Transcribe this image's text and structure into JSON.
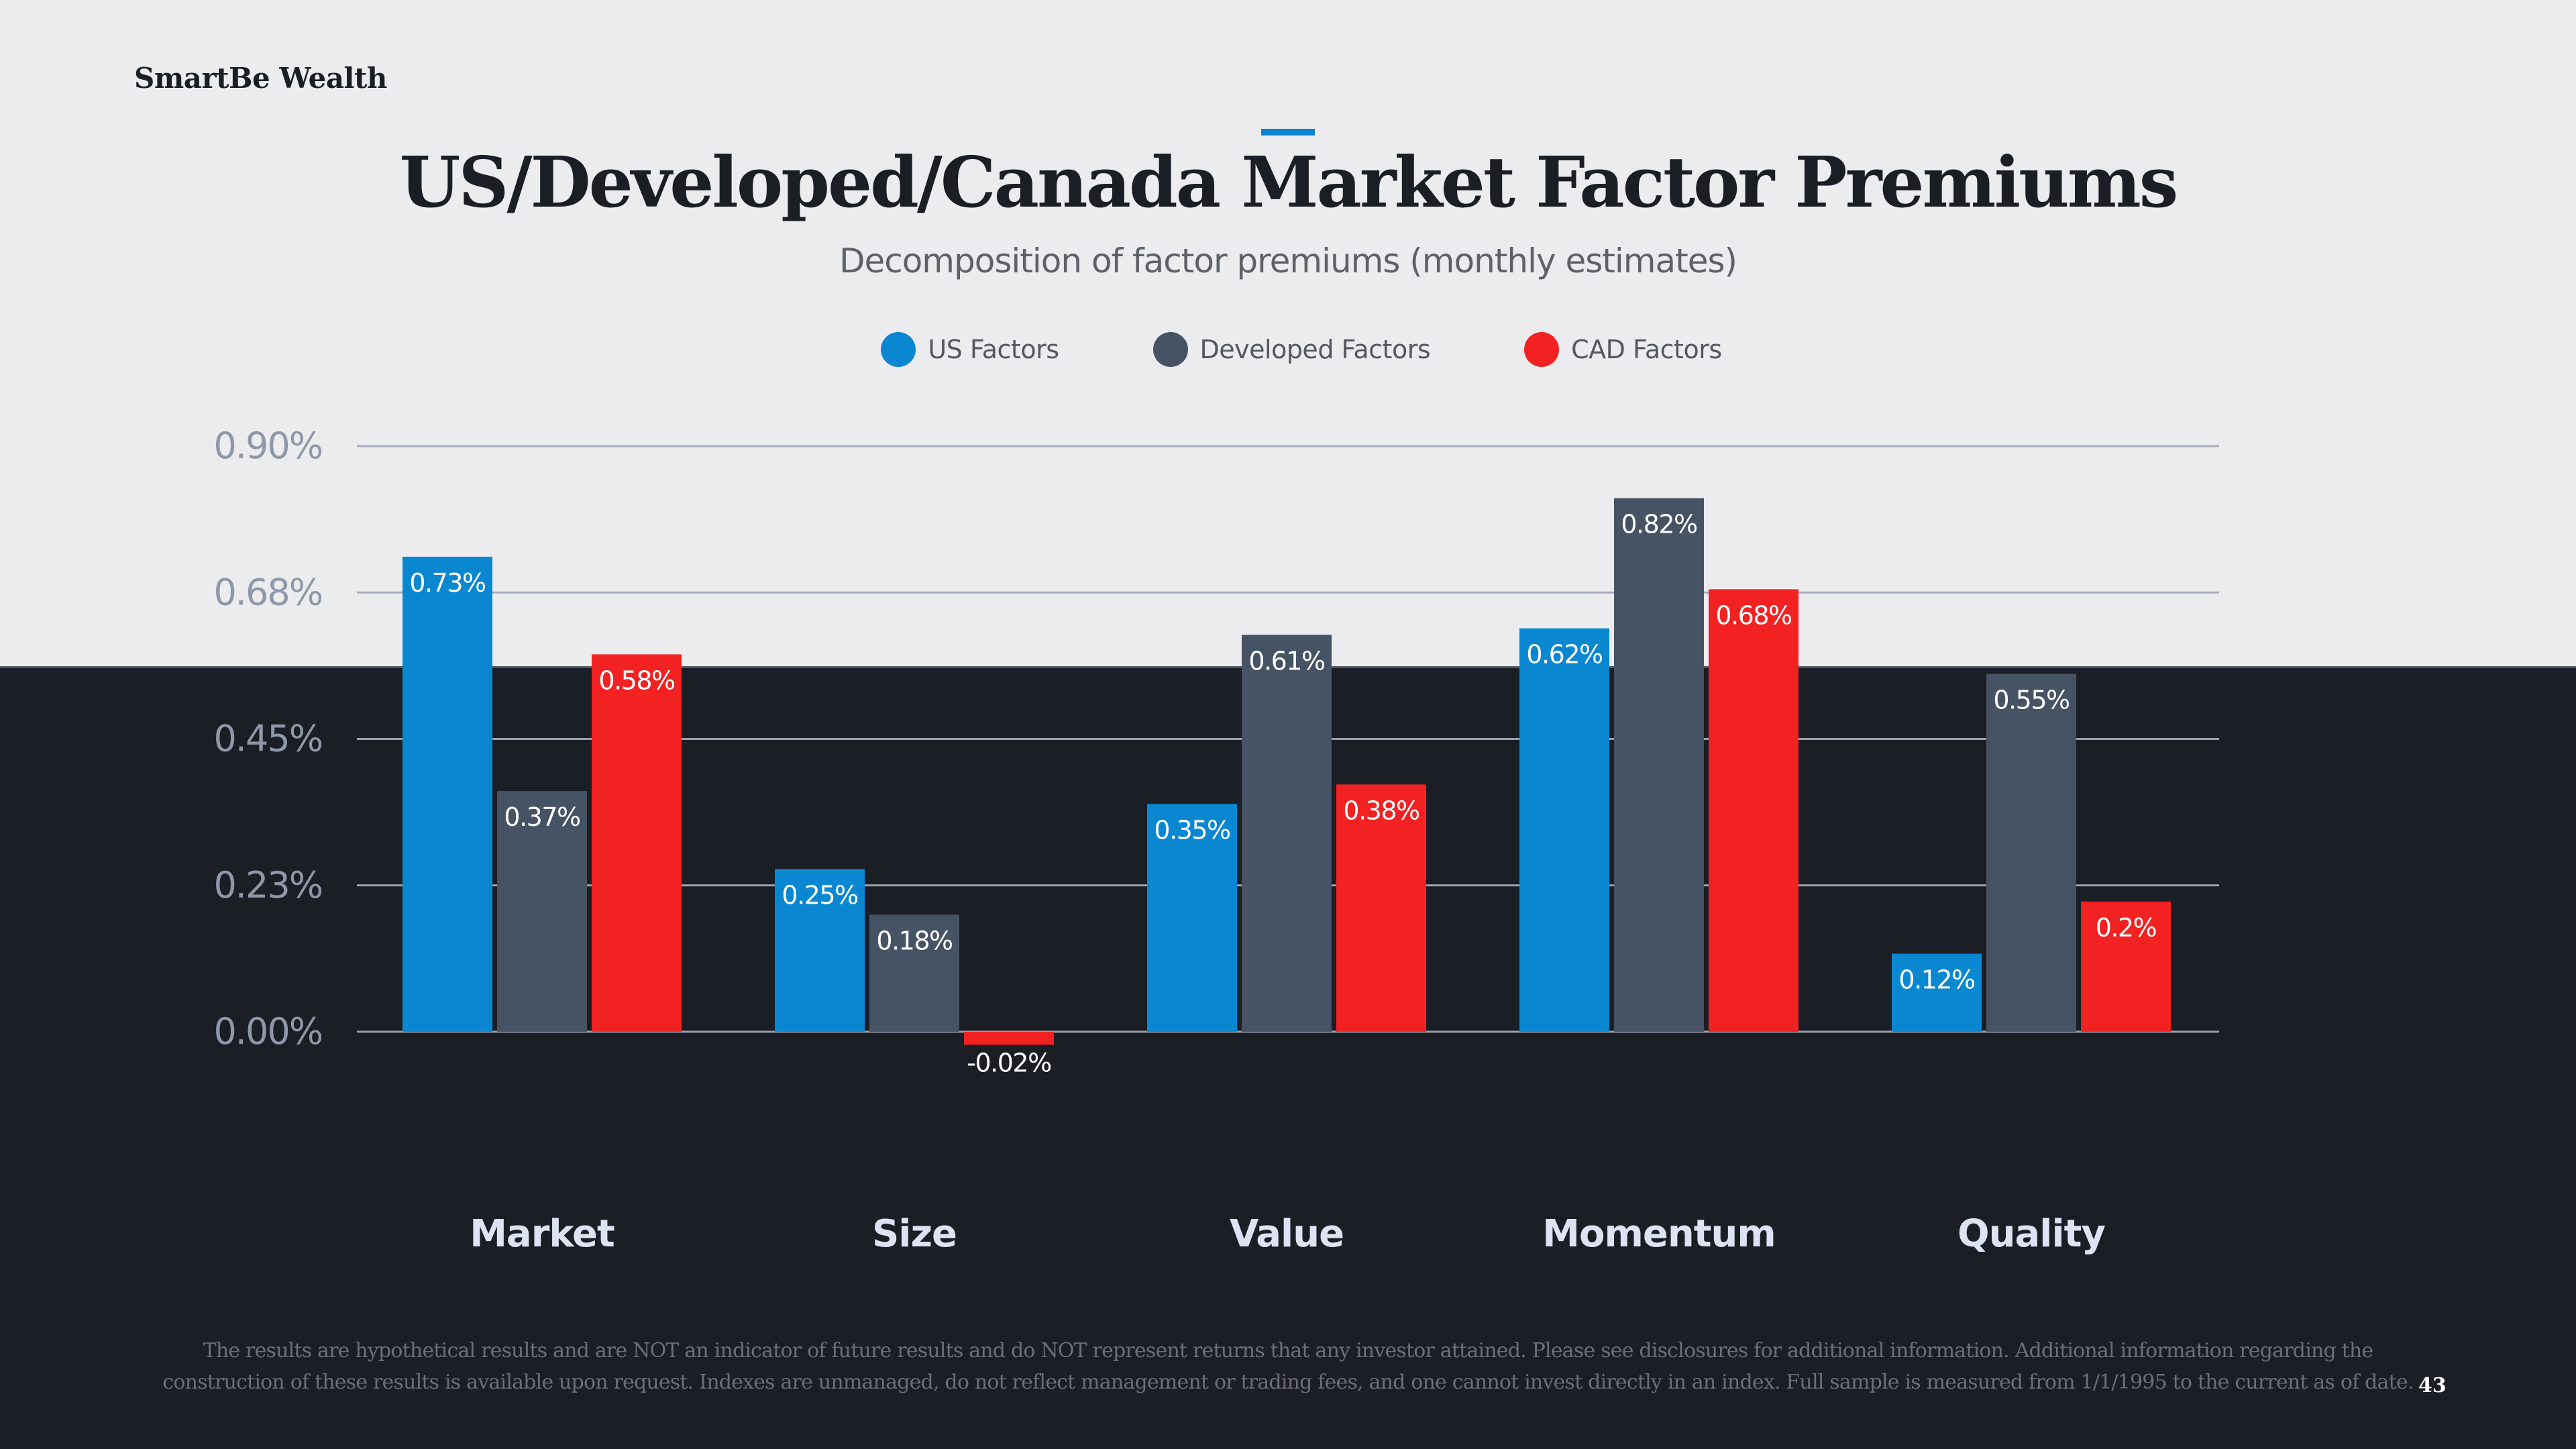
{
  "header": {
    "brand": "SmartBe Wealth",
    "title": "US/Developed/Canada Market Factor Premiums",
    "subtitle": "Decomposition of factor premiums (monthly estimates)"
  },
  "legend": [
    {
      "label": "US Factors",
      "color": "#0a87d1"
    },
    {
      "label": "Developed Factors",
      "color": "#465364"
    },
    {
      "label": "CAD Factors",
      "color": "#f22222"
    }
  ],
  "chart_data": {
    "type": "bar",
    "title": "US/Developed/Canada Market Factor Premiums",
    "subtitle": "Decomposition of factor premiums (monthly estimates)",
    "xlabel": "",
    "ylabel": "",
    "categories": [
      "Market",
      "Size",
      "Value",
      "Momentum",
      "Quality"
    ],
    "series": [
      {
        "name": "US Factors",
        "color": "#0a87d1",
        "values": [
          0.73,
          0.25,
          0.35,
          0.62,
          0.12
        ],
        "labels": [
          "0.73%",
          "0.25%",
          "0.35%",
          "0.62%",
          "0.12%"
        ]
      },
      {
        "name": "Developed Factors",
        "color": "#465364",
        "values": [
          0.37,
          0.18,
          0.61,
          0.82,
          0.55
        ],
        "labels": [
          "0.37%",
          "0.18%",
          "0.61%",
          "0.82%",
          "0.55%"
        ]
      },
      {
        "name": "CAD Factors",
        "color": "#f22222",
        "values": [
          0.58,
          -0.02,
          0.38,
          0.68,
          0.2
        ],
        "labels": [
          "0.58%",
          "-0.02%",
          "0.38%",
          "0.68%",
          "0.2%"
        ]
      }
    ],
    "yticks": [
      0.0,
      0.225,
      0.45,
      0.675,
      0.9
    ],
    "ytick_labels": [
      "0.00%",
      "0.23%",
      "0.45%",
      "0.68%",
      "0.90%"
    ],
    "ylim": [
      0,
      0.9
    ],
    "grid": true,
    "legend_position": "top-center"
  },
  "footer": {
    "disclaimer_line1": "The results are hypothetical results and are NOT an indicator of future results and do NOT represent returns that any investor attained. Please see disclosures for additional information. Additional information regarding the",
    "disclaimer_line2": "construction of these results is available upon request. Indexes are unmanaged, do not reflect management or trading fees, and one cannot invest directly in an index. Full sample is measured from 1/1/1995 to the current as of date.",
    "page_number": "43"
  }
}
